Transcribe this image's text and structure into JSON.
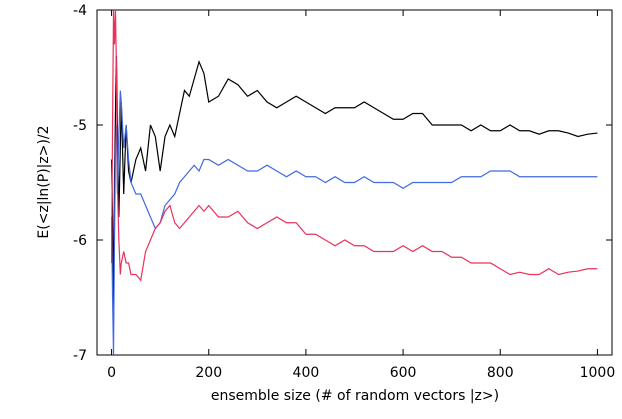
{
  "chart_data": {
    "type": "line",
    "x_label": "ensemble size (# of random vectors |z>)",
    "y_label": "E(<z|ln(P)|z>)/2",
    "x": [
      0,
      2,
      4,
      6,
      8,
      10,
      12,
      15,
      18,
      20,
      25,
      30,
      35,
      40,
      50,
      60,
      70,
      80,
      90,
      100,
      110,
      120,
      130,
      140,
      150,
      160,
      170,
      180,
      190,
      200,
      220,
      240,
      260,
      280,
      300,
      320,
      340,
      360,
      380,
      400,
      420,
      440,
      460,
      480,
      500,
      520,
      540,
      560,
      580,
      600,
      620,
      640,
      660,
      680,
      700,
      720,
      740,
      760,
      780,
      800,
      820,
      840,
      860,
      880,
      900,
      920,
      940,
      960,
      980,
      1000
    ],
    "series": [
      {
        "color": "#000000",
        "values": [
          -5.3,
          -5.8,
          -6.6,
          -5.5,
          -4.9,
          -4.4,
          -5.0,
          -5.8,
          -5.2,
          -4.8,
          -5.6,
          -5.0,
          -5.4,
          -5.5,
          -5.3,
          -5.2,
          -5.4,
          -5.0,
          -5.1,
          -5.4,
          -5.1,
          -5.0,
          -5.1,
          -4.9,
          -4.7,
          -4.75,
          -4.6,
          -4.45,
          -4.55,
          -4.8,
          -4.75,
          -4.6,
          -4.65,
          -4.75,
          -4.7,
          -4.8,
          -4.85,
          -4.8,
          -4.75,
          -4.8,
          -4.85,
          -4.9,
          -4.85,
          -4.85,
          -4.85,
          -4.8,
          -4.85,
          -4.9,
          -4.95,
          -4.95,
          -4.9,
          -4.9,
          -5.0,
          -5.0,
          -5.0,
          -5.0,
          -5.05,
          -5.0,
          -5.05,
          -5.05,
          -5.0,
          -5.05,
          -5.05,
          -5.08,
          -5.05,
          -5.05,
          -5.07,
          -5.1,
          -5.08,
          -5.07
        ]
      },
      {
        "color": "#4169e1",
        "values": [
          -5.8,
          -6.5,
          -7.0,
          -6.0,
          -5.2,
          -5.0,
          -5.6,
          -5.1,
          -4.7,
          -4.8,
          -5.2,
          -5.0,
          -5.3,
          -5.5,
          -5.6,
          -5.6,
          -5.7,
          -5.8,
          -5.9,
          -5.85,
          -5.7,
          -5.65,
          -5.6,
          -5.5,
          -5.45,
          -5.4,
          -5.35,
          -5.4,
          -5.3,
          -5.3,
          -5.35,
          -5.3,
          -5.35,
          -5.4,
          -5.4,
          -5.35,
          -5.4,
          -5.45,
          -5.4,
          -5.45,
          -5.45,
          -5.5,
          -5.45,
          -5.5,
          -5.5,
          -5.45,
          -5.5,
          -5.5,
          -5.5,
          -5.55,
          -5.5,
          -5.5,
          -5.5,
          -5.5,
          -5.5,
          -5.45,
          -5.45,
          -5.45,
          -5.4,
          -5.4,
          -5.4,
          -5.45,
          -5.45,
          -5.45,
          -5.45,
          -5.45,
          -5.45,
          -5.45,
          -5.45,
          -5.45
        ]
      },
      {
        "color": "#e8315b",
        "values": [
          -6.2,
          -5.0,
          -4.0,
          -4.3,
          -4.0,
          -4.5,
          -5.5,
          -6.0,
          -6.3,
          -6.2,
          -6.1,
          -6.2,
          -6.2,
          -6.3,
          -6.3,
          -6.35,
          -6.1,
          -6.0,
          -5.9,
          -5.85,
          -5.75,
          -5.7,
          -5.85,
          -5.9,
          -5.85,
          -5.8,
          -5.75,
          -5.7,
          -5.75,
          -5.7,
          -5.8,
          -5.8,
          -5.75,
          -5.85,
          -5.9,
          -5.85,
          -5.8,
          -5.85,
          -5.85,
          -5.95,
          -5.95,
          -6.0,
          -6.05,
          -6.0,
          -6.05,
          -6.05,
          -6.1,
          -6.1,
          -6.1,
          -6.05,
          -6.1,
          -6.05,
          -6.1,
          -6.1,
          -6.15,
          -6.15,
          -6.2,
          -6.2,
          -6.2,
          -6.25,
          -6.3,
          -6.28,
          -6.3,
          -6.3,
          -6.25,
          -6.3,
          -6.28,
          -6.27,
          -6.25,
          -6.25
        ]
      }
    ],
    "xlim": [
      -30,
      1030
    ],
    "ylim": [
      -7,
      -4
    ],
    "xticks": [
      0,
      200,
      400,
      600,
      800,
      1000
    ],
    "yticks": [
      -7,
      -6,
      -5,
      -4
    ]
  }
}
